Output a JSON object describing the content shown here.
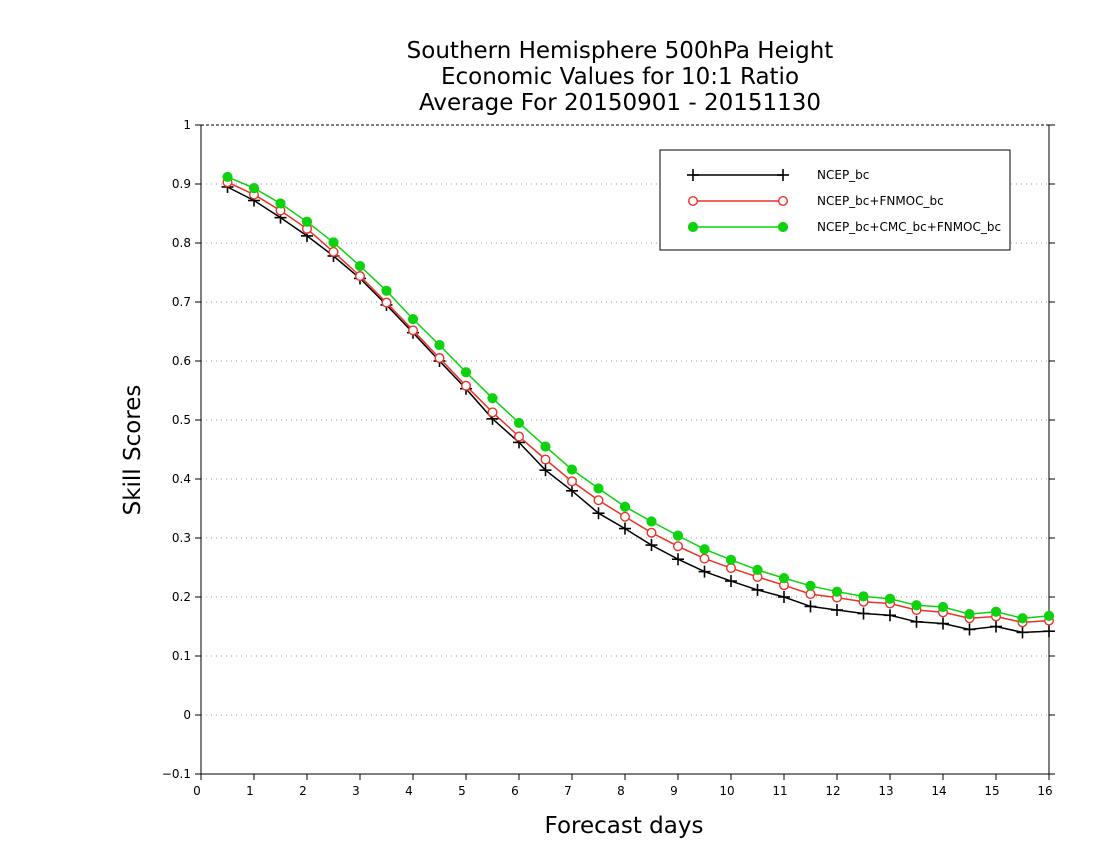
{
  "chart_data": {
    "type": "line",
    "title": [
      "Southern Hemisphere 500hPa Height",
      "Economic Values for 10:1 Ratio",
      "Average For 20150901 - 20151130"
    ],
    "xlabel": "Forecast days",
    "ylabel": "Skill Scores",
    "xlim": [
      0,
      16
    ],
    "ylim": [
      -0.1,
      1
    ],
    "xticks": [
      "0",
      "1",
      "2",
      "3",
      "4",
      "5",
      "6",
      "7",
      "8",
      "9",
      "10",
      "11",
      "12",
      "13",
      "14",
      "15",
      "16"
    ],
    "yticks": [
      "-0.1",
      "0",
      "0.1",
      "0.2",
      "0.3",
      "0.4",
      "0.5",
      "0.6",
      "0.7",
      "0.8",
      "0.9",
      "1"
    ],
    "grid": "horizontal dotted",
    "legend_position": "top-right",
    "x": [
      0.5,
      1,
      1.5,
      2,
      2.5,
      3,
      3.5,
      4,
      4.5,
      5,
      5.5,
      6,
      6.5,
      7,
      7.5,
      8,
      8.5,
      9,
      9.5,
      10,
      10.5,
      11,
      11.5,
      12,
      12.5,
      13,
      13.5,
      14,
      14.5,
      15,
      15.5,
      16
    ],
    "series": [
      {
        "name": "NCEP_bc",
        "color": "#000000",
        "marker": "plus",
        "values": [
          0.895,
          0.872,
          0.843,
          0.812,
          0.778,
          0.74,
          0.695,
          0.648,
          0.6,
          0.553,
          0.502,
          0.462,
          0.415,
          0.38,
          0.342,
          0.316,
          0.288,
          0.264,
          0.243,
          0.227,
          0.212,
          0.2,
          0.184,
          0.178,
          0.172,
          0.169,
          0.158,
          0.155,
          0.145,
          0.15,
          0.14,
          0.142
        ]
      },
      {
        "name": "NCEP_bc+FNMOC_bc",
        "color": "#e8322a",
        "marker": "open-circle",
        "values": [
          0.903,
          0.882,
          0.855,
          0.824,
          0.785,
          0.744,
          0.699,
          0.652,
          0.605,
          0.558,
          0.513,
          0.472,
          0.433,
          0.396,
          0.364,
          0.336,
          0.309,
          0.286,
          0.265,
          0.249,
          0.234,
          0.22,
          0.205,
          0.199,
          0.192,
          0.189,
          0.178,
          0.174,
          0.164,
          0.167,
          0.157,
          0.16
        ]
      },
      {
        "name": "NCEP_bc+CMC_bc+FNMOC_bc",
        "color": "#0ed20e",
        "marker": "filled-circle",
        "values": [
          0.912,
          0.893,
          0.867,
          0.836,
          0.801,
          0.761,
          0.719,
          0.671,
          0.627,
          0.581,
          0.537,
          0.495,
          0.455,
          0.416,
          0.384,
          0.353,
          0.328,
          0.304,
          0.281,
          0.263,
          0.246,
          0.232,
          0.219,
          0.209,
          0.201,
          0.197,
          0.186,
          0.183,
          0.171,
          0.175,
          0.164,
          0.168
        ]
      }
    ]
  }
}
